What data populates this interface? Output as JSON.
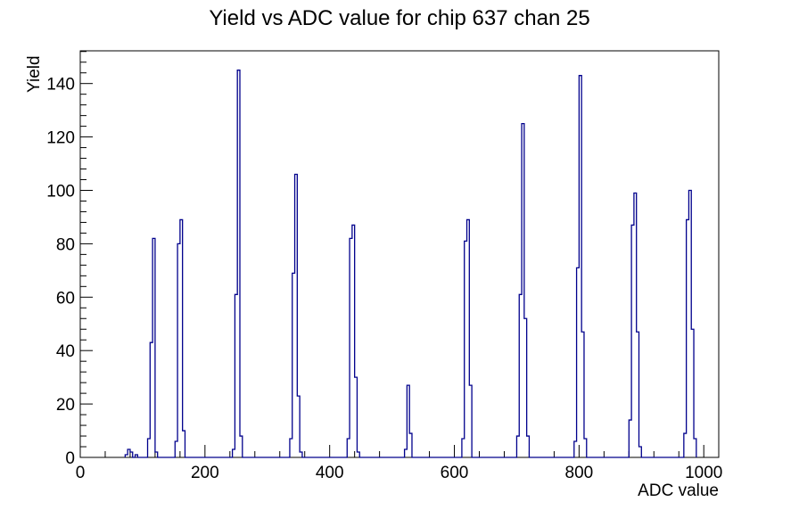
{
  "page": {
    "title": "Yield vs ADC value for chip 637 chan 25"
  },
  "colors": {
    "histogram_line": "#00008C",
    "axis": "#000000",
    "background": "#FFFFFF"
  },
  "chart_data": {
    "type": "bar",
    "title": "Yield vs ADC value for chip 637 chan 25",
    "xlabel": "ADC value",
    "ylabel": "Yield",
    "xlim": [
      0,
      1024
    ],
    "ylim": [
      0,
      152.25
    ],
    "x_major_ticks": [
      0,
      200,
      400,
      600,
      800,
      1000
    ],
    "x_minor_step": 40,
    "y_major_ticks": [
      0,
      20,
      40,
      60,
      80,
      100,
      120,
      140
    ],
    "y_minor_step": 4,
    "grid": false,
    "legend": false,
    "bin_width": 4,
    "bins": [
      [
        72,
        1
      ],
      [
        76,
        3
      ],
      [
        80,
        2
      ],
      [
        88,
        1
      ],
      [
        108,
        7
      ],
      [
        112,
        43
      ],
      [
        116,
        82
      ],
      [
        120,
        2
      ],
      [
        152,
        6
      ],
      [
        156,
        80
      ],
      [
        160,
        89
      ],
      [
        164,
        10
      ],
      [
        244,
        3
      ],
      [
        248,
        61
      ],
      [
        252,
        145
      ],
      [
        256,
        8
      ],
      [
        336,
        7
      ],
      [
        340,
        69
      ],
      [
        344,
        106
      ],
      [
        348,
        23
      ],
      [
        352,
        2
      ],
      [
        428,
        7
      ],
      [
        432,
        82
      ],
      [
        436,
        87
      ],
      [
        440,
        30
      ],
      [
        444,
        2
      ],
      [
        520,
        3
      ],
      [
        524,
        27
      ],
      [
        528,
        9
      ],
      [
        612,
        7
      ],
      [
        616,
        81
      ],
      [
        620,
        89
      ],
      [
        624,
        27
      ],
      [
        700,
        8
      ],
      [
        704,
        61
      ],
      [
        708,
        125
      ],
      [
        712,
        52
      ],
      [
        716,
        8
      ],
      [
        792,
        6
      ],
      [
        796,
        71
      ],
      [
        800,
        143
      ],
      [
        804,
        47
      ],
      [
        808,
        7
      ],
      [
        880,
        14
      ],
      [
        884,
        87
      ],
      [
        888,
        99
      ],
      [
        892,
        47
      ],
      [
        896,
        4
      ],
      [
        968,
        9
      ],
      [
        972,
        89
      ],
      [
        976,
        100
      ],
      [
        980,
        48
      ],
      [
        984,
        7
      ]
    ]
  }
}
